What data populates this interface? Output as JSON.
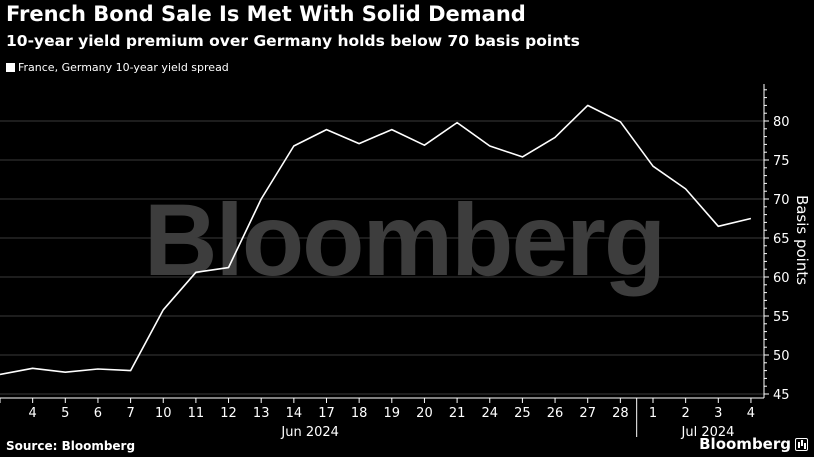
{
  "title": "French Bond Sale Is Met With Solid Demand",
  "subtitle": "10-year yield premium over Germany holds below 70 basis points",
  "watermark": "Bloomberg",
  "footer": {
    "source": "Source: Bloomberg",
    "brand": "Bloomberg"
  },
  "colors": {
    "background": "#000000",
    "line": "#ffffff",
    "grid": "#3a3a3a",
    "watermark": "#3d3d3d"
  },
  "chart_data": {
    "type": "line",
    "title": "French Bond Sale Is Met With Solid Demand",
    "subtitle": "10-year yield premium over Germany holds below 70 basis points",
    "xlabel": "",
    "ylabel": "Basis points",
    "y_axis_side": "right",
    "ylim": [
      45,
      85
    ],
    "yticks": [
      45,
      50,
      55,
      60,
      65,
      70,
      75,
      80
    ],
    "grid": "horizontal",
    "legend_position": "top-left",
    "categories": [
      "3",
      "4",
      "5",
      "6",
      "7",
      "10",
      "11",
      "12",
      "13",
      "14",
      "17",
      "18",
      "19",
      "20",
      "21",
      "24",
      "25",
      "26",
      "27",
      "28",
      "1",
      "2",
      "3",
      "4"
    ],
    "xtick_labels": [
      "4",
      "5",
      "6",
      "7",
      "10",
      "11",
      "12",
      "13",
      "14",
      "17",
      "18",
      "19",
      "20",
      "21",
      "24",
      "25",
      "26",
      "27",
      "28",
      "1",
      "2",
      "3",
      "4"
    ],
    "x_groups": [
      {
        "label": "Jun 2024",
        "from": "3",
        "to": "28"
      },
      {
        "label": "Jul 2024",
        "from": "1",
        "to": "4"
      }
    ],
    "series": [
      {
        "name": "France, Germany 10-year yield spread",
        "values": [
          47.5,
          48.3,
          47.8,
          48.2,
          48.0,
          55.8,
          60.6,
          61.2,
          70.0,
          76.8,
          78.9,
          77.1,
          78.9,
          76.9,
          79.8,
          76.8,
          75.4,
          77.9,
          82.0,
          79.9,
          74.2,
          71.3,
          66.5,
          67.5
        ]
      }
    ]
  }
}
